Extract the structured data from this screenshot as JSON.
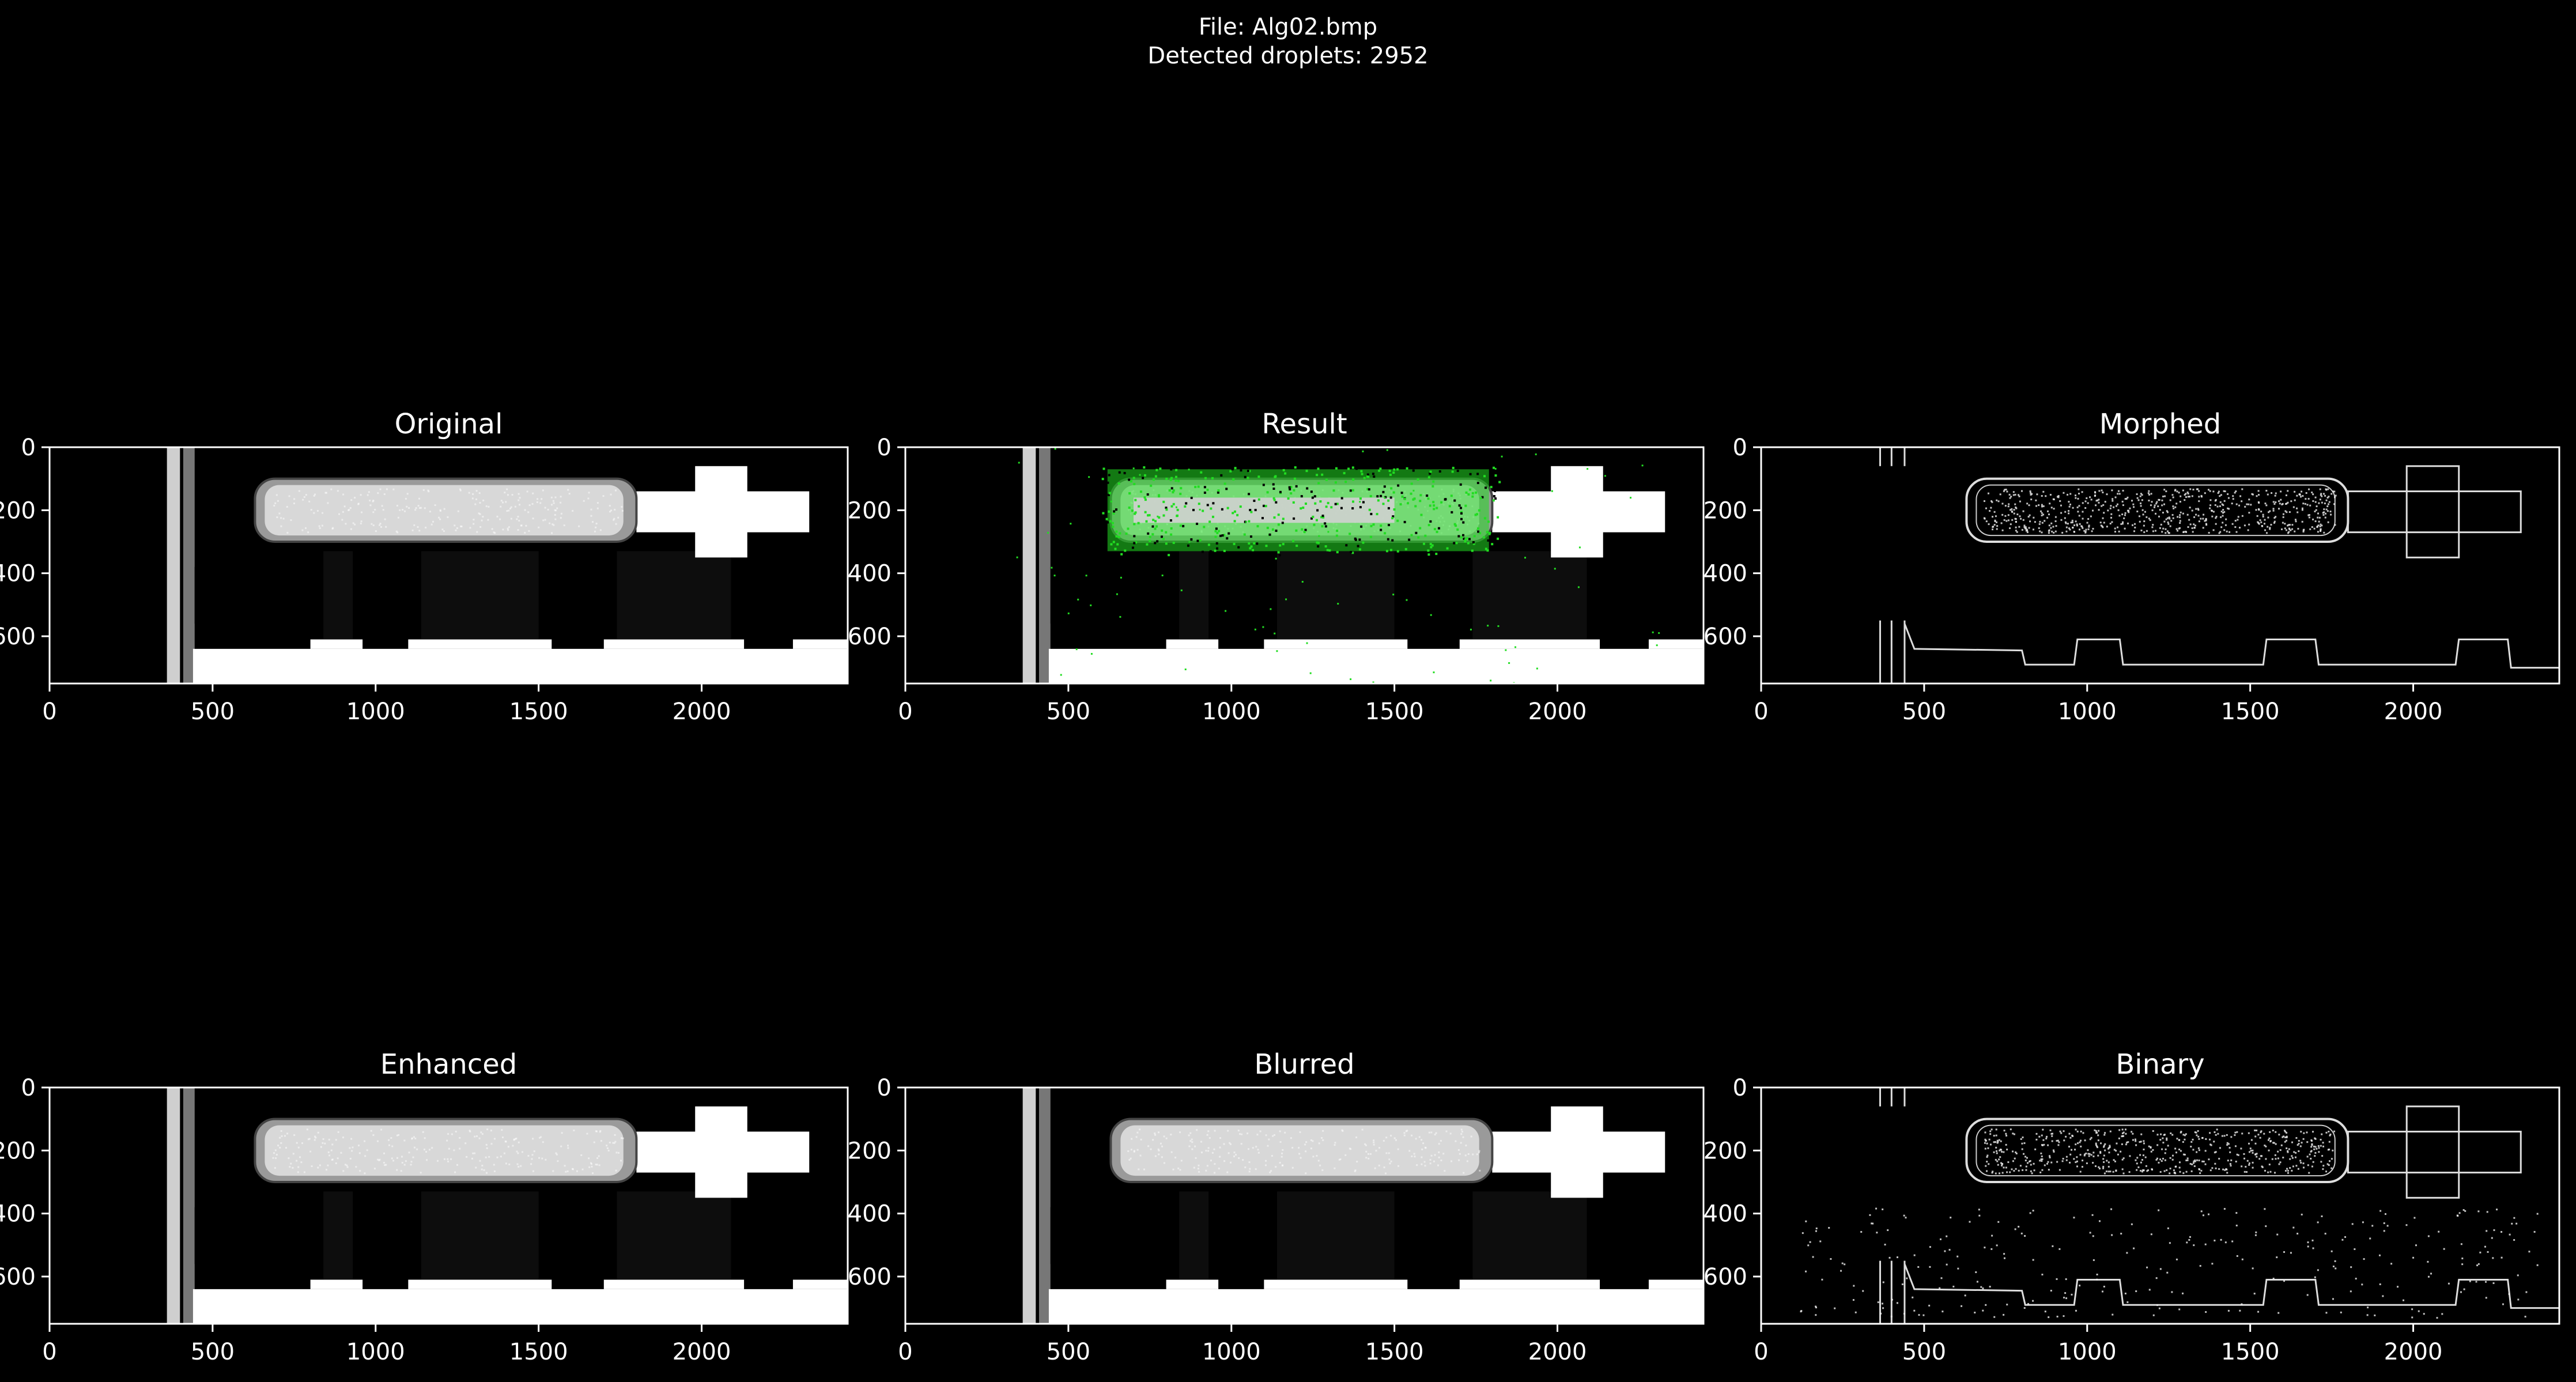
{
  "figure": {
    "file_line": "File: Alg02.bmp",
    "count_line": "Detected droplets: 2952"
  },
  "colors": {
    "background": "#000000",
    "axes": "#ffffff",
    "detection": "#22dd22",
    "image_gray": "#c8c8c8"
  },
  "chart_data": [
    {
      "type": "image",
      "title": "Original",
      "x_ticks": [
        0,
        500,
        1000,
        1500,
        2000
      ],
      "y_ticks": [
        0,
        200,
        400,
        600
      ],
      "xlim": [
        0,
        2448
      ],
      "ylim": [
        750,
        0
      ],
      "style": "grayscale"
    },
    {
      "type": "image",
      "title": "Result",
      "x_ticks": [
        0,
        500,
        1000,
        1500,
        2000
      ],
      "y_ticks": [
        0,
        200,
        400,
        600
      ],
      "xlim": [
        0,
        2448
      ],
      "ylim": [
        750,
        0
      ],
      "style": "overlay"
    },
    {
      "type": "image",
      "title": "Morphed",
      "x_ticks": [
        0,
        500,
        1000,
        1500,
        2000
      ],
      "y_ticks": [
        0,
        200,
        400,
        600
      ],
      "xlim": [
        0,
        2448
      ],
      "ylim": [
        750,
        0
      ],
      "style": "edges"
    },
    {
      "type": "image",
      "title": "Enhanced",
      "x_ticks": [
        0,
        500,
        1000,
        1500,
        2000
      ],
      "y_ticks": [
        0,
        200,
        400,
        600
      ],
      "xlim": [
        0,
        2448
      ],
      "ylim": [
        750,
        0
      ],
      "style": "grayscale"
    },
    {
      "type": "image",
      "title": "Blurred",
      "x_ticks": [
        0,
        500,
        1000,
        1500,
        2000
      ],
      "y_ticks": [
        0,
        200,
        400,
        600
      ],
      "xlim": [
        0,
        2448
      ],
      "ylim": [
        750,
        0
      ],
      "style": "grayscale"
    },
    {
      "type": "image",
      "title": "Binary",
      "x_ticks": [
        0,
        500,
        1000,
        1500,
        2000
      ],
      "y_ticks": [
        0,
        200,
        400,
        600
      ],
      "xlim": [
        0,
        2448
      ],
      "ylim": [
        750,
        0
      ],
      "style": "edges-noise"
    }
  ]
}
